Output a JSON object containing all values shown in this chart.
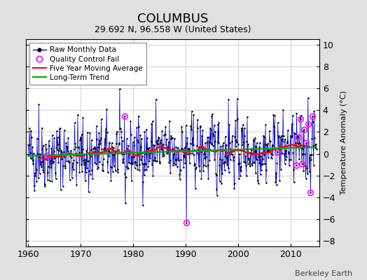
{
  "title": "COLUMBUS",
  "subtitle": "29.692 N, 96.558 W (United States)",
  "ylabel": "Temperature Anomaly (°C)",
  "attribution": "Berkeley Earth",
  "xlim": [
    1959.5,
    2015.5
  ],
  "ylim": [
    -8.5,
    10.5
  ],
  "yticks": [
    -8,
    -6,
    -4,
    -2,
    0,
    2,
    4,
    6,
    8,
    10
  ],
  "xticks": [
    1960,
    1970,
    1980,
    1990,
    2000,
    2010
  ],
  "background_color": "#e0e0e0",
  "plot_bg_color": "#ffffff",
  "raw_line_color": "#0000cc",
  "raw_marker_color": "#000000",
  "moving_avg_color": "#ff0000",
  "trend_color": "#00aa00",
  "qc_fail_color": "#ff00ff",
  "seed": 42,
  "title_fontsize": 13,
  "subtitle_fontsize": 9,
  "tick_fontsize": 9,
  "legend_fontsize": 7.5
}
